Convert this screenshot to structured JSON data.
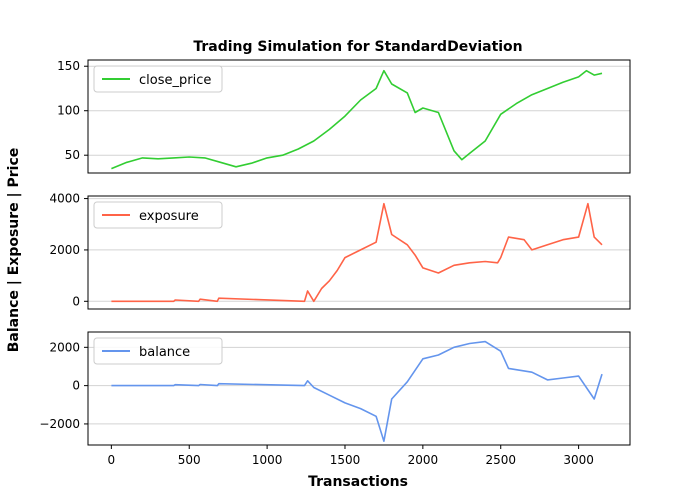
{
  "figure": {
    "title": "Trading Simulation for StandardDeviation",
    "xlabel": "Transactions",
    "ylabel": "Balance | Exposure | Price"
  },
  "chart_data": [
    {
      "type": "line",
      "series": [
        {
          "name": "close_price",
          "color": "#32cd32"
        }
      ],
      "legend_position": "top-left",
      "grid": "horizontal",
      "xlim": [
        -150,
        3330
      ],
      "ylim": [
        30,
        157
      ],
      "yticks": [
        50,
        100,
        150
      ],
      "x": [
        0,
        100,
        200,
        300,
        400,
        500,
        600,
        700,
        800,
        900,
        1000,
        1100,
        1200,
        1300,
        1400,
        1500,
        1600,
        1700,
        1750,
        1800,
        1900,
        1950,
        2000,
        2100,
        2200,
        2250,
        2300,
        2400,
        2500,
        2600,
        2700,
        2800,
        2900,
        3000,
        3050,
        3100,
        3150
      ],
      "values": [
        35,
        42,
        47,
        46,
        47,
        48,
        47,
        42,
        37,
        41,
        47,
        50,
        57,
        66,
        79,
        94,
        112,
        125,
        145,
        130,
        120,
        98,
        103,
        98,
        55,
        45,
        52,
        66,
        96,
        108,
        118,
        125,
        132,
        138,
        145,
        140,
        142
      ]
    },
    {
      "type": "line",
      "series": [
        {
          "name": "exposure",
          "color": "#ff6347"
        }
      ],
      "legend_position": "top-left",
      "grid": "horizontal",
      "xlim": [
        -150,
        3330
      ],
      "ylim": [
        -300,
        4100
      ],
      "yticks": [
        0,
        2000,
        4000
      ],
      "x": [
        0,
        400,
        410,
        560,
        570,
        680,
        690,
        1240,
        1260,
        1300,
        1350,
        1400,
        1450,
        1500,
        1600,
        1700,
        1750,
        1800,
        1900,
        1950,
        2000,
        2100,
        2200,
        2300,
        2400,
        2480,
        2500,
        2550,
        2650,
        2700,
        2800,
        2900,
        3000,
        3060,
        3100,
        3150
      ],
      "values": [
        0,
        0,
        50,
        0,
        80,
        0,
        120,
        0,
        400,
        0,
        500,
        800,
        1200,
        1700,
        2000,
        2300,
        3800,
        2600,
        2200,
        1800,
        1300,
        1100,
        1400,
        1500,
        1550,
        1500,
        1700,
        2500,
        2400,
        2000,
        2200,
        2400,
        2500,
        3800,
        2500,
        2200
      ]
    },
    {
      "type": "line",
      "series": [
        {
          "name": "balance",
          "color": "#6495ed"
        }
      ],
      "legend_position": "top-left",
      "grid": "horizontal",
      "xlim": [
        -150,
        3330
      ],
      "ylim": [
        -3100,
        2800
      ],
      "yticks": [
        -2000,
        0,
        2000
      ],
      "xticks": [
        0,
        500,
        1000,
        1500,
        2000,
        2500,
        3000
      ],
      "x": [
        0,
        400,
        410,
        560,
        570,
        680,
        690,
        1240,
        1260,
        1300,
        1400,
        1500,
        1600,
        1700,
        1750,
        1800,
        1900,
        1950,
        2000,
        2100,
        2200,
        2300,
        2400,
        2500,
        2550,
        2700,
        2800,
        2900,
        3000,
        3100,
        3150
      ],
      "values": [
        0,
        0,
        50,
        0,
        60,
        0,
        100,
        0,
        250,
        -100,
        -500,
        -900,
        -1200,
        -1600,
        -2900,
        -700,
        200,
        800,
        1400,
        1600,
        2000,
        2200,
        2300,
        1800,
        900,
        700,
        300,
        400,
        500,
        -700,
        600
      ]
    }
  ]
}
